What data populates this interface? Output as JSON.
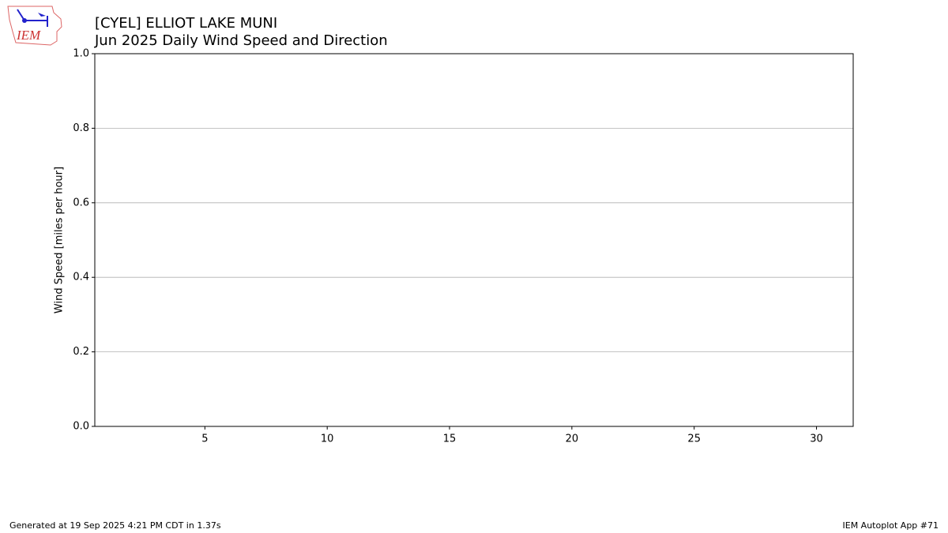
{
  "logo": {
    "text": "IEM"
  },
  "chart_data": {
    "type": "line",
    "title": "[CYEL] ELLIOT LAKE MUNI",
    "subtitle": "Jun 2025 Daily Wind Speed and Direction",
    "ylabel": "Wind Speed [miles per hour]",
    "xlim": [
      0.5,
      31.5
    ],
    "xticks": [
      5,
      10,
      15,
      20,
      25,
      30
    ],
    "ylim": [
      0,
      1
    ],
    "yticks": [
      {
        "value": 0,
        "label": "0.0"
      },
      0.2,
      0.4,
      0.6,
      0.8,
      {
        "value": 1,
        "label": "1.0"
      }
    ],
    "grid": "y"
  },
  "footer": {
    "left": "Generated at 19 Sep 2025 4:21 PM CDT in 1.37s",
    "right": "IEM Autoplot App #71"
  }
}
